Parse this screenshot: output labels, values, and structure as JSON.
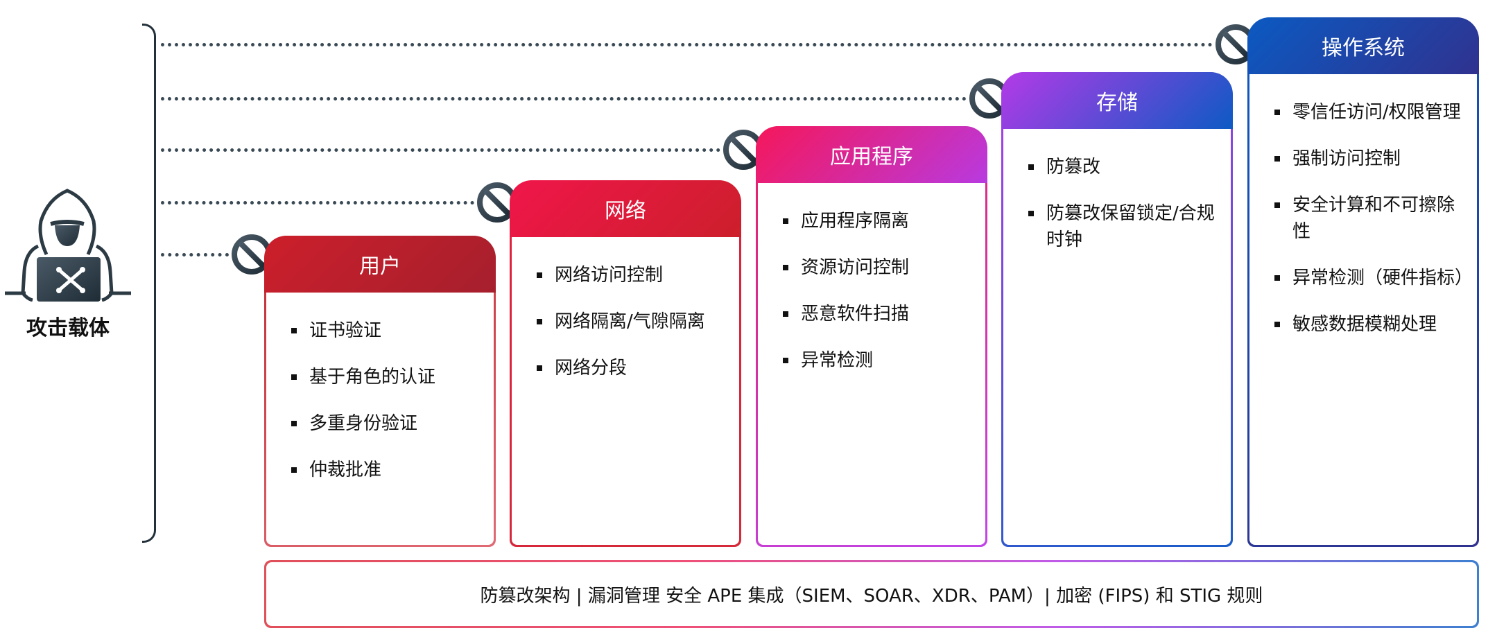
{
  "attacker": {
    "label": "攻击载体",
    "icon": "hacker-icon"
  },
  "block_icon": "prohibited-icon",
  "layers": [
    {
      "title": "用户",
      "colors": [
        "#cc1f2b",
        "#a61f2d"
      ],
      "border": [
        "#c22a33",
        "#e06a74"
      ],
      "items": [
        "证书验证",
        "基于角色的认证",
        "多重身份验证",
        "仲裁批准"
      ]
    },
    {
      "title": "网络",
      "colors": [
        "#f0164a",
        "#cc1f2b"
      ],
      "border": [
        "#e0203c",
        "#d42a3a"
      ],
      "items": [
        "网络访问控制",
        "网络隔离/气隙隔离",
        "网络分段"
      ]
    },
    {
      "title": "应用程序",
      "colors": [
        "#f5175a",
        "#b83ae0"
      ],
      "border": [
        "#e8205e",
        "#c045e8"
      ],
      "items": [
        "应用程序隔离",
        "资源访问控制",
        "恶意软件扫描",
        "异常检测"
      ]
    },
    {
      "title": "存储",
      "colors": [
        "#b43ae8",
        "#0d5ac4"
      ],
      "border": [
        "#b03ee6",
        "#1a5dc8"
      ],
      "items": [
        "防篡改",
        "防篡改保留锁定/合规时钟"
      ]
    },
    {
      "title": "操作系统",
      "colors": [
        "#0b5ac2",
        "#30328f"
      ],
      "border": [
        "#0b5ac2",
        "#30328f"
      ],
      "items": [
        "零信任访问/权限管理",
        "强制访问控制",
        "安全计算和不可擦除性",
        "异常检测（硬件指标）",
        "敏感数据模糊处理"
      ]
    }
  ],
  "footer": {
    "text": "防篡改架构 | 漏洞管理 安全 APE 集成（SIEM、SOAR、XDR、PAM）| 加密 (FIPS) 和 STIG 规则"
  }
}
